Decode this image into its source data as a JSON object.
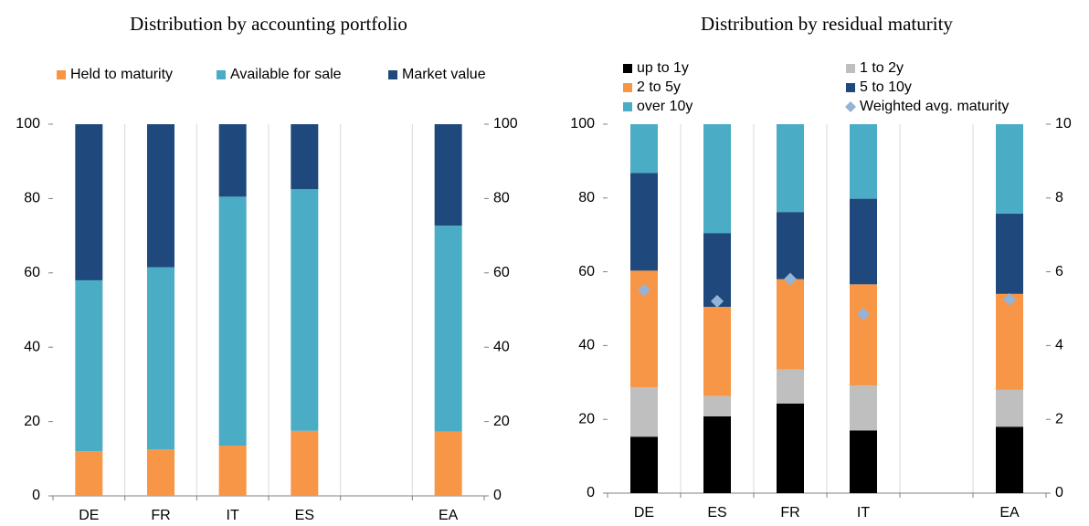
{
  "chart_data": [
    {
      "type": "bar",
      "stacked": true,
      "title": "Distribution by accounting portfolio",
      "categories": [
        "DE",
        "FR",
        "IT",
        "ES",
        null,
        "EA"
      ],
      "series": [
        {
          "name": "Held to maturity",
          "color": "#f79646",
          "values": [
            12,
            12.5,
            13.5,
            17.5,
            null,
            17.3
          ]
        },
        {
          "name": "Available for sale",
          "color": "#4bacc6",
          "values": [
            46,
            49,
            67,
            65,
            null,
            55.4
          ]
        },
        {
          "name": "Market value",
          "color": "#1f497d",
          "values": [
            42,
            38.5,
            19.5,
            17.5,
            null,
            27.3
          ]
        }
      ],
      "ylim": [
        0,
        100
      ],
      "yticks": [
        0,
        20,
        40,
        60,
        80,
        100
      ],
      "y2lim": [
        0,
        100
      ],
      "y2ticks": [
        0,
        20,
        40,
        60,
        80,
        100
      ]
    },
    {
      "type": "bar",
      "stacked": true,
      "title": "Distribution by residual maturity",
      "categories": [
        "DE",
        "ES",
        "FR",
        "IT",
        null,
        "EA"
      ],
      "series": [
        {
          "name": "up to 1y",
          "color": "#000000",
          "values": [
            15.3,
            20.8,
            24.3,
            17,
            null,
            18
          ]
        },
        {
          "name": "1 to 2y",
          "color": "#bfbfbf",
          "values": [
            13.4,
            5.5,
            9.2,
            12.2,
            null,
            10
          ]
        },
        {
          "name": "2 to 5y",
          "color": "#f79646",
          "values": [
            31.6,
            24.2,
            24.5,
            27.4,
            null,
            26
          ]
        },
        {
          "name": "5 to 10y",
          "color": "#1f497d",
          "values": [
            26.5,
            20,
            18.2,
            23.2,
            null,
            21.8
          ]
        },
        {
          "name": "over 10y",
          "color": "#4bacc6",
          "values": [
            13.2,
            29.5,
            23.8,
            20.2,
            null,
            24.2
          ]
        },
        {
          "name": "Weighted avg. maturity",
          "color": "#95b3d7",
          "type": "scatter",
          "marker": "diamond",
          "axis": "y2",
          "values": [
            5.5,
            5.2,
            5.8,
            4.85,
            null,
            5.25
          ]
        }
      ],
      "ylim": [
        0,
        100
      ],
      "yticks": [
        0,
        20,
        40,
        60,
        80,
        100
      ],
      "y2lim": [
        0,
        10
      ],
      "y2ticks": [
        0,
        2,
        4,
        6,
        8,
        10
      ]
    }
  ]
}
